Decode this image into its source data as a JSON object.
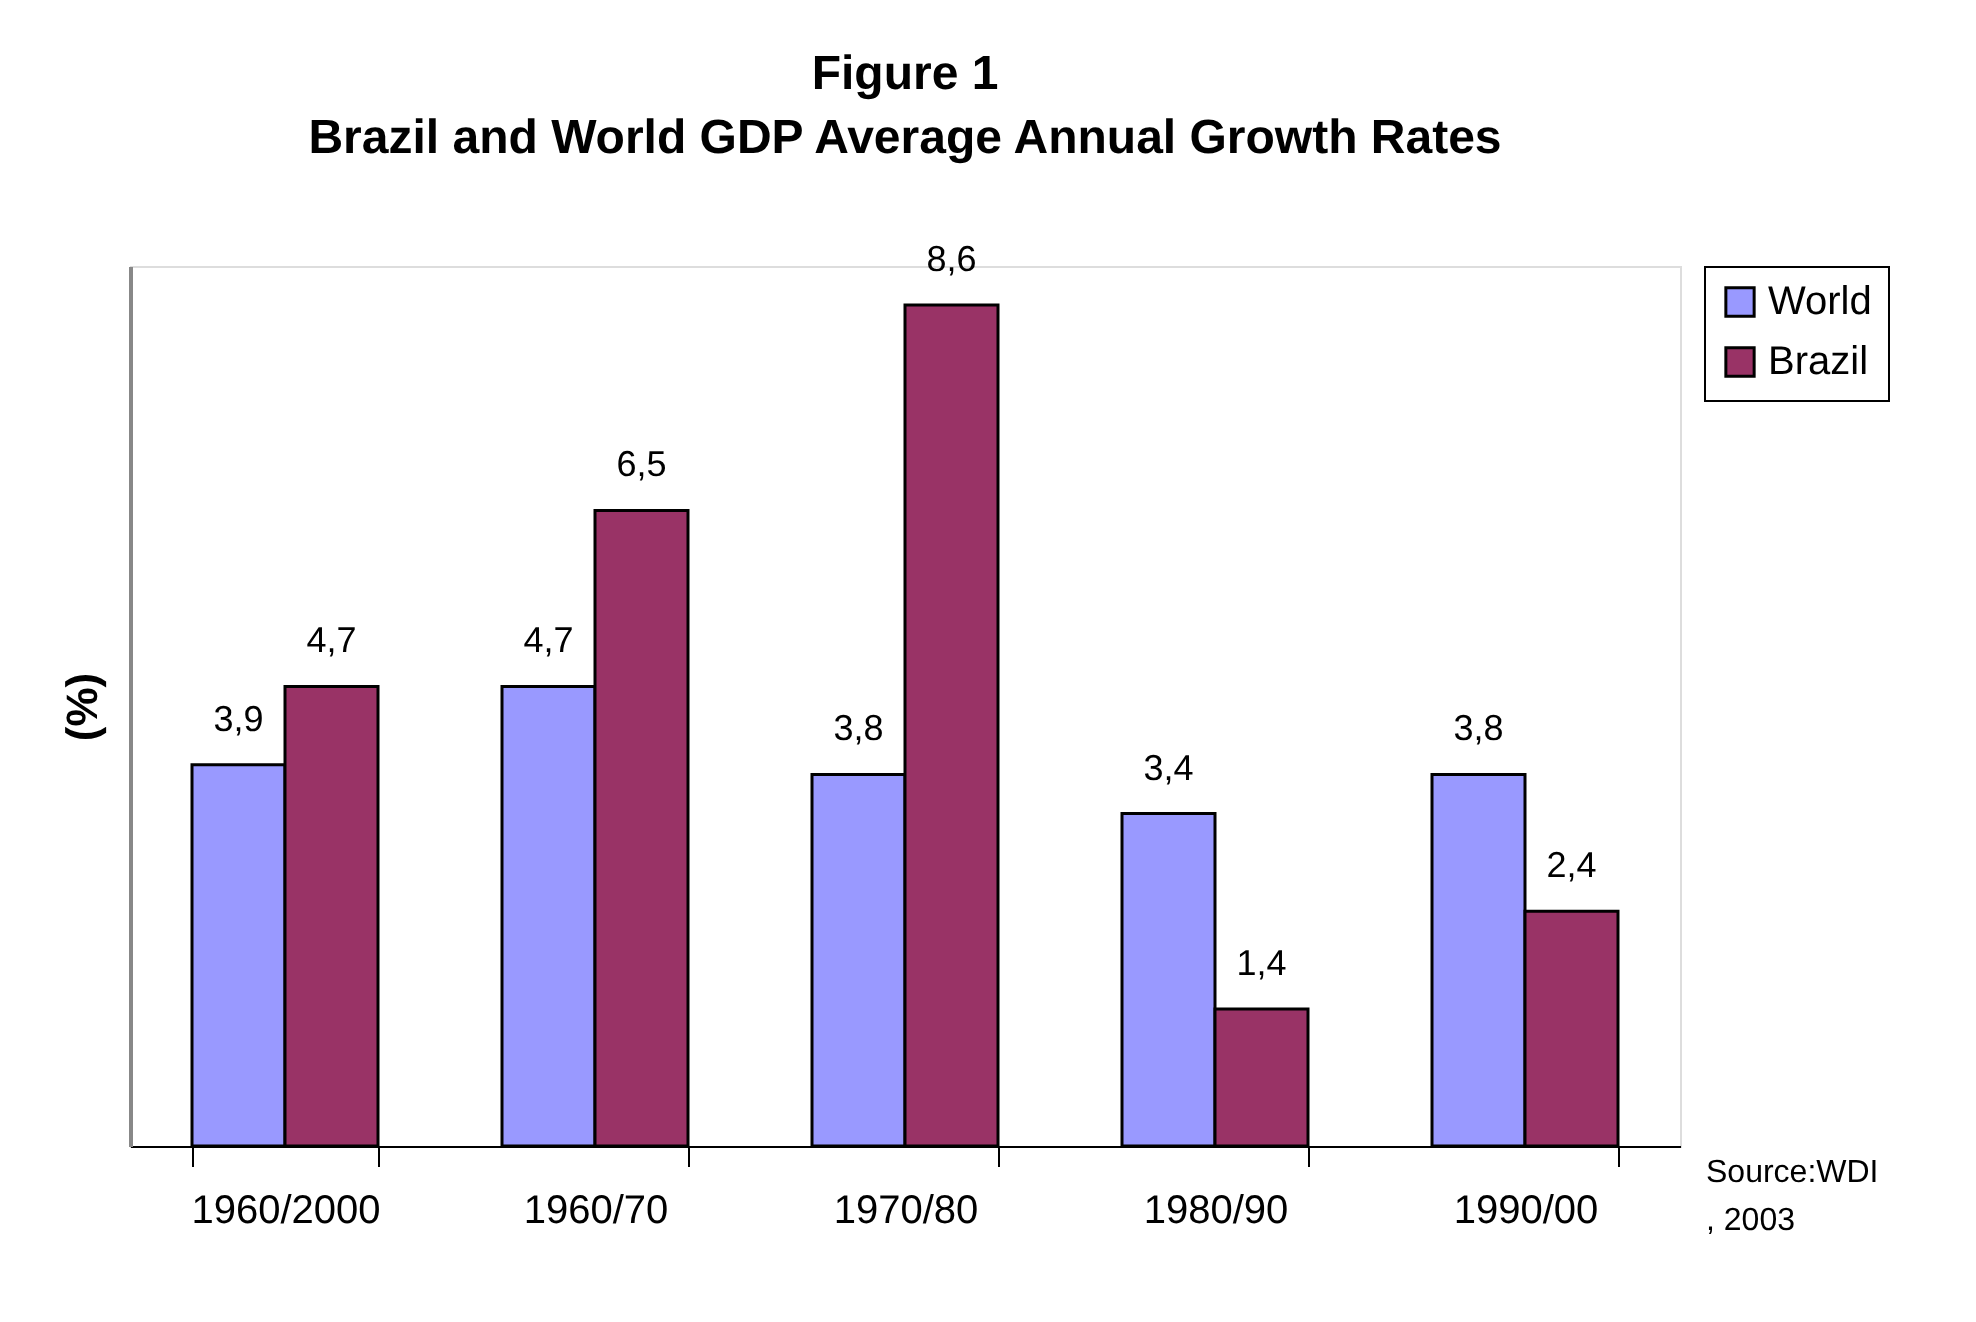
{
  "chart_data": {
    "type": "bar",
    "title": "Figure 1",
    "subtitle": "Brazil and World GDP Average Annual Growth Rates",
    "ylabel": "(%)",
    "categories": [
      "1960/2000",
      "1960/70",
      "1970/80",
      "1980/90",
      "1990/00"
    ],
    "series": [
      {
        "name": "World",
        "color": "#9999ff",
        "values": [
          3.9,
          4.7,
          3.8,
          3.4,
          3.8
        ],
        "value_labels": [
          "3,9",
          "4,7",
          "3,8",
          "3,4",
          "3,8"
        ]
      },
      {
        "name": "Brazil",
        "color": "#993366",
        "values": [
          4.7,
          6.5,
          8.6,
          1.4,
          2.4
        ],
        "value_labels": [
          "4,7",
          "6,5",
          "8,6",
          "1,4",
          "2,4"
        ]
      }
    ],
    "legend": "right",
    "grid": false,
    "annotations": [
      "Source:WDI\n, 2003"
    ]
  }
}
